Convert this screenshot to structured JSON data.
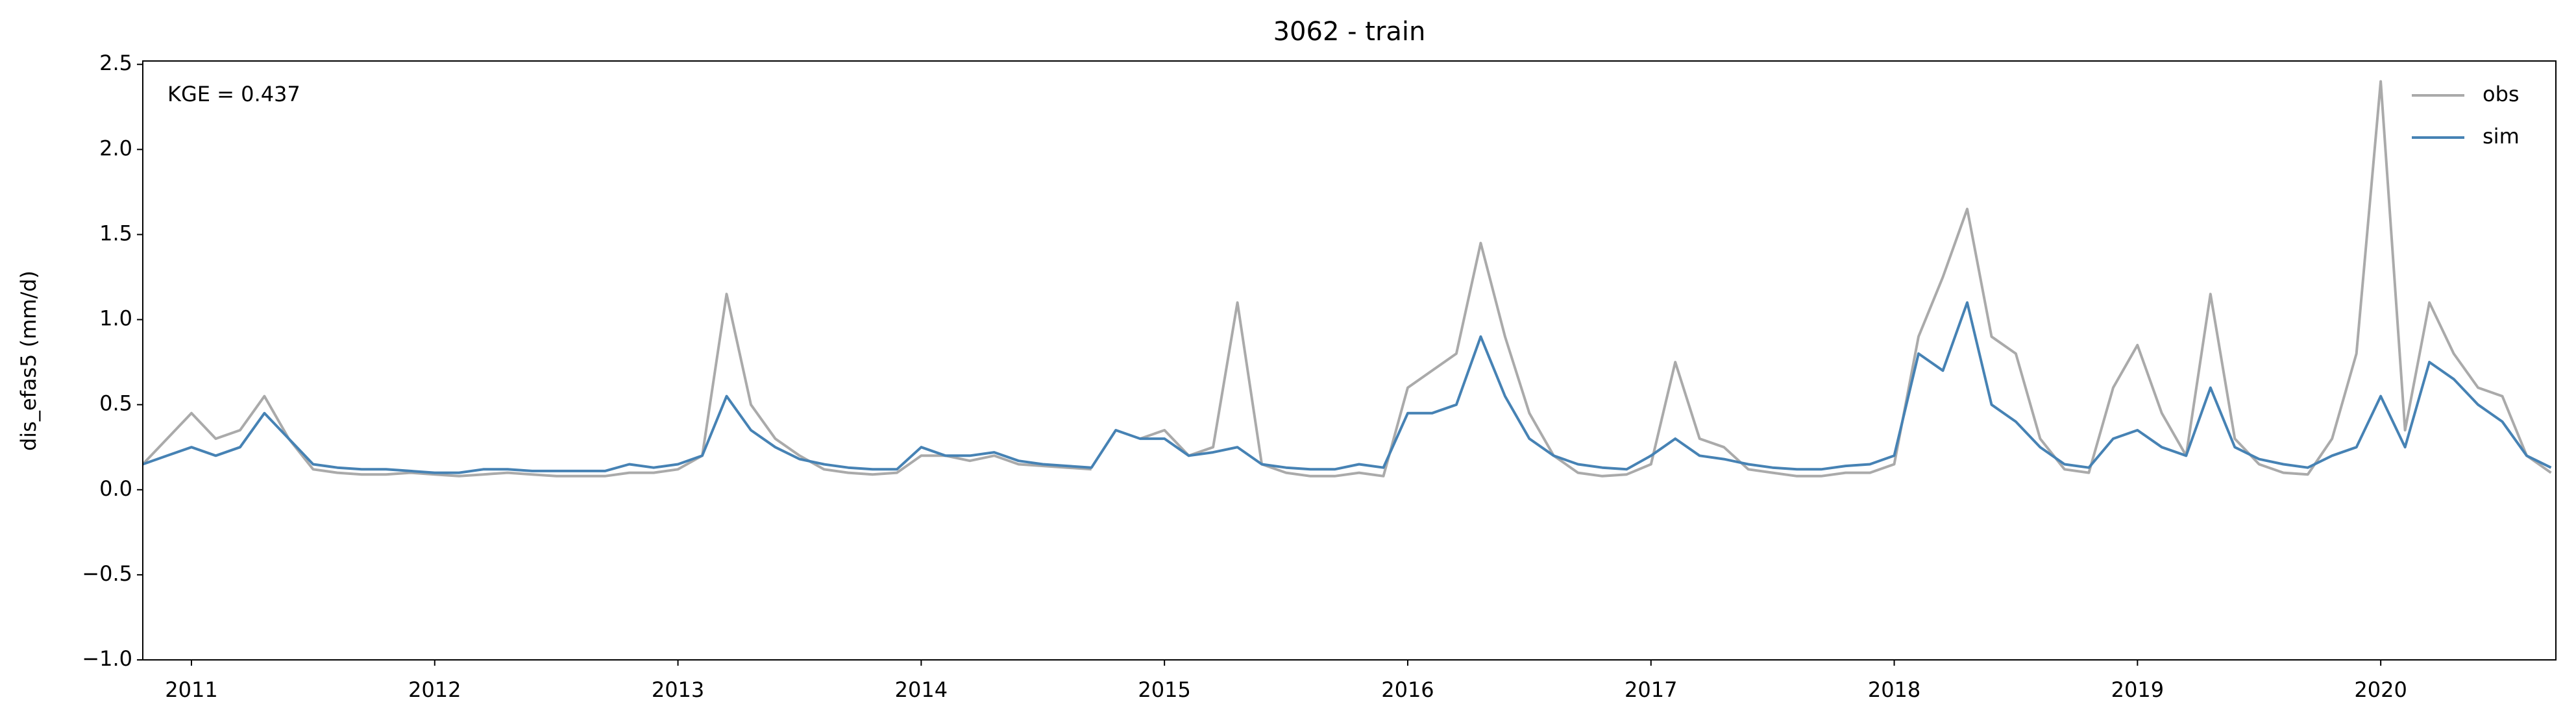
{
  "chart_data": {
    "type": "line",
    "title": "3062 - train",
    "y_label": "dis_efas5 (mm/d)",
    "annotation": "KGE = 0.437",
    "x": [
      2010.8,
      2010.9,
      2011.0,
      2011.1,
      2011.2,
      2011.3,
      2011.4,
      2011.5,
      2011.6,
      2011.7,
      2011.8,
      2011.9,
      2012.0,
      2012.1,
      2012.2,
      2012.3,
      2012.4,
      2012.5,
      2012.6,
      2012.7,
      2012.8,
      2012.9,
      2013.0,
      2013.1,
      2013.2,
      2013.3,
      2013.4,
      2013.5,
      2013.6,
      2013.7,
      2013.8,
      2013.9,
      2014.0,
      2014.1,
      2014.2,
      2014.3,
      2014.4,
      2014.5,
      2014.6,
      2014.7,
      2014.8,
      2014.9,
      2015.0,
      2015.1,
      2015.2,
      2015.3,
      2015.4,
      2015.5,
      2015.6,
      2015.7,
      2015.8,
      2015.9,
      2016.0,
      2016.1,
      2016.2,
      2016.3,
      2016.4,
      2016.5,
      2016.6,
      2016.7,
      2016.8,
      2016.9,
      2017.0,
      2017.1,
      2017.2,
      2017.3,
      2017.4,
      2017.5,
      2017.6,
      2017.7,
      2017.8,
      2017.9,
      2018.0,
      2018.1,
      2018.2,
      2018.3,
      2018.4,
      2018.5,
      2018.6,
      2018.7,
      2018.8,
      2018.9,
      2019.0,
      2019.1,
      2019.2,
      2019.3,
      2019.4,
      2019.5,
      2019.6,
      2019.7,
      2019.8,
      2019.9,
      2020.0,
      2020.1,
      2020.2,
      2020.3,
      2020.4,
      2020.5,
      2020.6,
      2020.7
    ],
    "series": [
      {
        "name": "obs",
        "color": "#aaaaaa",
        "values": [
          0.15,
          0.3,
          0.45,
          0.3,
          0.35,
          0.55,
          0.3,
          0.12,
          0.1,
          0.09,
          0.09,
          0.1,
          0.09,
          0.08,
          0.09,
          0.1,
          0.09,
          0.08,
          0.08,
          0.08,
          0.1,
          0.1,
          0.12,
          0.2,
          1.15,
          0.5,
          0.3,
          0.2,
          0.12,
          0.1,
          0.09,
          0.1,
          0.2,
          0.2,
          0.17,
          0.2,
          0.15,
          0.14,
          0.13,
          0.12,
          null,
          0.3,
          0.35,
          0.2,
          0.25,
          1.1,
          0.15,
          0.1,
          0.08,
          0.08,
          0.1,
          0.08,
          0.6,
          0.7,
          0.8,
          1.45,
          0.9,
          0.45,
          0.2,
          0.1,
          0.08,
          0.09,
          0.15,
          0.75,
          0.3,
          0.25,
          0.12,
          0.1,
          0.08,
          0.08,
          0.1,
          0.1,
          0.15,
          0.9,
          1.25,
          1.65,
          0.9,
          0.8,
          0.3,
          0.12,
          0.1,
          0.6,
          0.85,
          0.45,
          0.2,
          1.15,
          0.3,
          0.15,
          0.1,
          0.09,
          0.3,
          0.8,
          2.4,
          0.35,
          1.1,
          0.8,
          0.6,
          0.55,
          0.2,
          0.1
        ]
      },
      {
        "name": "sim",
        "color": "#4682b4",
        "values": [
          0.15,
          0.2,
          0.25,
          0.2,
          0.25,
          0.45,
          0.3,
          0.15,
          0.13,
          0.12,
          0.12,
          0.11,
          0.1,
          0.1,
          0.12,
          0.12,
          0.11,
          0.11,
          0.11,
          0.11,
          0.15,
          0.13,
          0.15,
          0.2,
          0.55,
          0.35,
          0.25,
          0.18,
          0.15,
          0.13,
          0.12,
          0.12,
          0.25,
          0.2,
          0.2,
          0.22,
          0.17,
          0.15,
          0.14,
          0.13,
          0.35,
          0.3,
          0.3,
          0.2,
          0.22,
          0.25,
          0.15,
          0.13,
          0.12,
          0.12,
          0.15,
          0.13,
          0.45,
          0.45,
          0.5,
          0.9,
          0.55,
          0.3,
          0.2,
          0.15,
          0.13,
          0.12,
          0.2,
          0.3,
          0.2,
          0.18,
          0.15,
          0.13,
          0.12,
          0.12,
          0.14,
          0.15,
          0.2,
          0.8,
          0.7,
          1.1,
          0.5,
          0.4,
          0.25,
          0.15,
          0.13,
          0.3,
          0.35,
          0.25,
          0.2,
          0.6,
          0.25,
          0.18,
          0.15,
          0.13,
          0.2,
          0.25,
          0.55,
          0.25,
          0.75,
          0.65,
          0.5,
          0.4,
          0.2,
          0.13
        ]
      }
    ],
    "xlim": [
      2010.8,
      2020.72
    ],
    "xticks": [
      2011,
      2012,
      2013,
      2014,
      2015,
      2016,
      2017,
      2018,
      2019,
      2020
    ],
    "ylim": [
      -1.0,
      2.52
    ],
    "yticks": [
      {
        "value": -1.0,
        "label": "−1.0"
      },
      {
        "value": -0.5,
        "label": "−0.5"
      },
      {
        "value": 0.0,
        "label": "0.0"
      },
      0.5,
      {
        "value": 1.0,
        "label": "1.0"
      },
      1.5,
      {
        "value": 2.0,
        "label": "2.0"
      },
      2.5
    ],
    "grid": false,
    "legend": "upper right"
  }
}
